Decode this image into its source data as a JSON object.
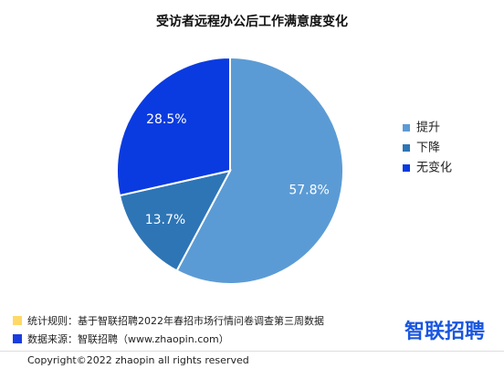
{
  "chart_data": {
    "type": "pie",
    "title": "受访者远程办公后工作满意度变化",
    "categories": [
      "提升",
      "下降",
      "无变化"
    ],
    "values": [
      57.8,
      13.7,
      28.5
    ],
    "value_labels": [
      "57.8%",
      "13.7%",
      "28.5%"
    ],
    "colors": [
      "#5b9bd5",
      "#2e75b6",
      "#0a3be0"
    ],
    "legend": "right"
  },
  "footer": {
    "rule": "统计规则：基于智联招聘2022年春招市场行情问卷调查第三周数据",
    "source": "数据来源：智联招聘（www.zhaopin.com）",
    "logo": "智联招聘",
    "copyright": "Copyright©2022 zhaopin all rights reserved"
  }
}
